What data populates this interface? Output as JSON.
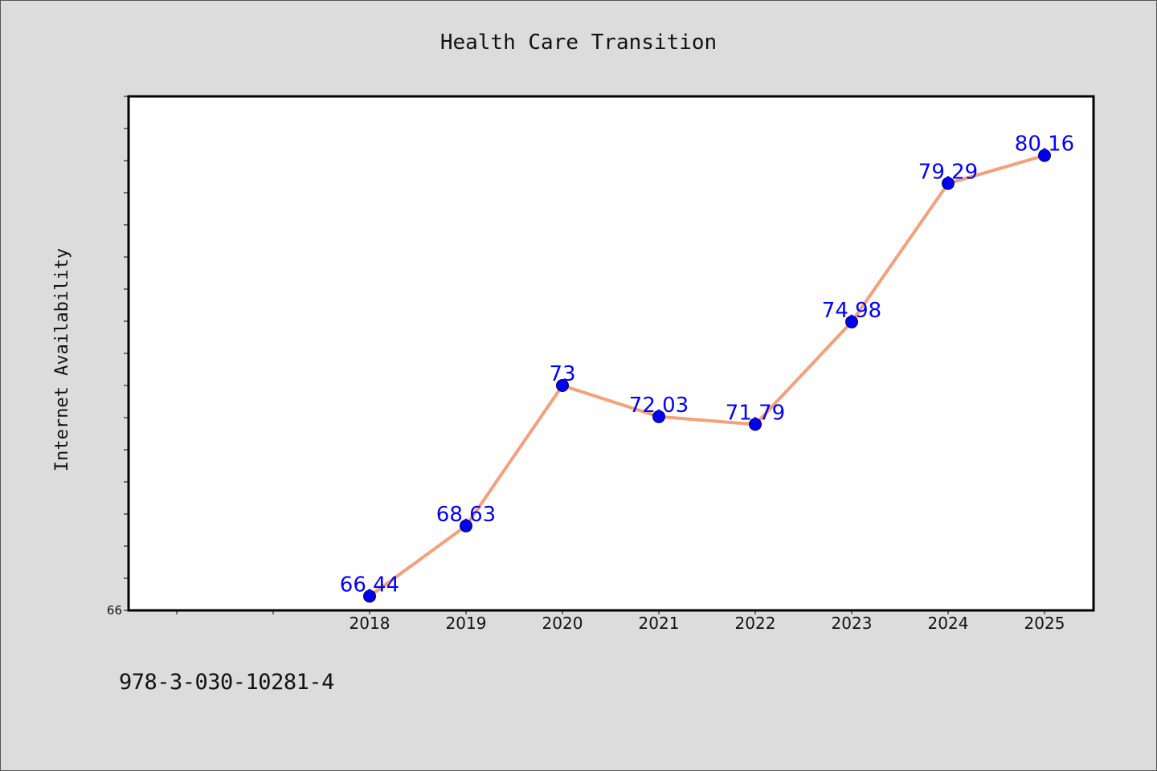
{
  "chart_data": {
    "type": "line",
    "title": "Health Care Transition",
    "xlabel": "",
    "ylabel": "Internet Availability",
    "categories": [
      "2018",
      "2019",
      "2020",
      "2021",
      "2022",
      "2023",
      "2024",
      "2025"
    ],
    "series": [
      {
        "values": [
          66.44,
          68.63,
          73,
          72.03,
          71.79,
          74.98,
          79.29,
          80.16
        ],
        "value_labels": [
          "66.44",
          "68.63",
          "73",
          "72.03",
          "71.79",
          "74.98",
          "79.29",
          "80.16"
        ]
      }
    ],
    "x_slots_before_first": 2,
    "ylim": [
      66,
      82
    ],
    "yticks_labeled": [
      "66"
    ],
    "ytick_step": 1,
    "grid": false,
    "legend": "none",
    "colors": {
      "line": "#f4a07a",
      "marker": "#0000ee",
      "marker_edge": "#000066",
      "data_label": "#0000ff",
      "plot_bg": "#ffffff",
      "figure_bg": "#dcdcdc"
    }
  },
  "footer": {
    "code": "978-3-030-10281-4"
  }
}
